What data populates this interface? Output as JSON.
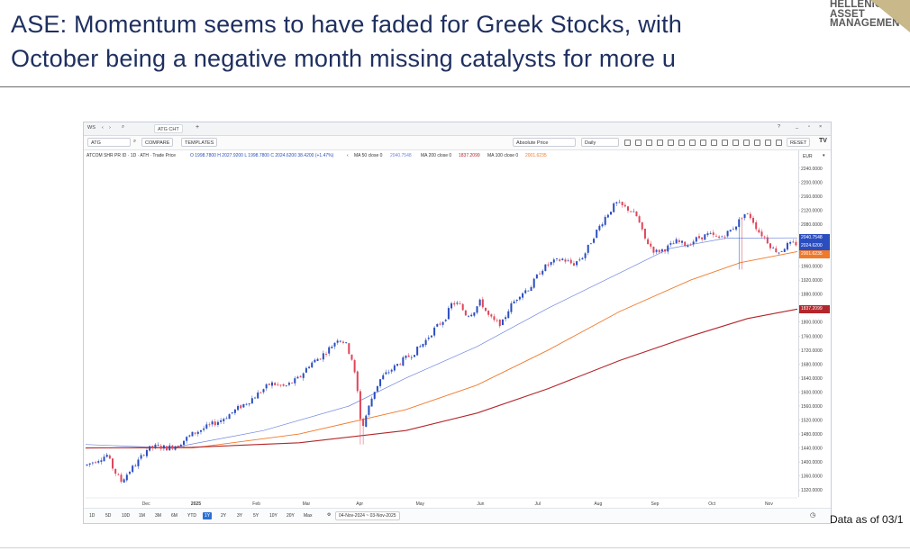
{
  "slide": {
    "title_line1": "ASE: Momentum seems to have faded for Greek Stocks, with",
    "title_line2": "October being a negative month missing catalysts for more u",
    "logo": [
      "HELLENIC",
      "ASSET",
      "MANAGEMENT"
    ],
    "footer_note": "Data as of 03/1"
  },
  "chart_window": {
    "tab_label": "ATG CHT",
    "workspace": "WS",
    "symbol_input": "ATG",
    "compare_label": "COMPARE",
    "templates_label": "TEMPLATES",
    "price_mode": "Absolute Price",
    "interval": "Daily",
    "reset_label": "RESET",
    "info": {
      "instrument": "ATCOM SHR PR ID · 1D · ATH · Trade Price",
      "ohlc": "O 1998.7800  H 2027.9200  L 1998.7800  C 2024.6200  38.4200 (+1.47%)",
      "ma50": "MA 50 close 0",
      "ma50_val": "2040.7548",
      "ma200": "MA 200 close 0",
      "ma200_val": "1837.2099",
      "ma100": "MA 100 close 0",
      "ma100_val": "2001.6235"
    },
    "currency": "EUR",
    "range_buttons": [
      "1D",
      "5D",
      "10D",
      "1M",
      "3M",
      "6M",
      "YTD",
      "1Y",
      "2Y",
      "3Y",
      "5Y",
      "10Y",
      "20Y",
      "Max"
    ],
    "range_selected": "1Y",
    "date_range": "04-Nov-2024 ~ 03-Nov-2025",
    "colors": {
      "up": "#2a4dbf",
      "down": "#e0455a",
      "ma50": "#6f86e0",
      "ma100": "#ef7a2c",
      "ma200": "#b3262b"
    }
  },
  "chart_data": {
    "type": "candlestick",
    "title": "",
    "xlabel": "",
    "ylabel": "",
    "x_tick_labels": [
      "Dec",
      "2025",
      "Feb",
      "Mar",
      "Apr",
      "May",
      "Jun",
      "Jul",
      "Aug",
      "Sep",
      "Oct",
      "Nov"
    ],
    "y_ticks": [
      1320,
      1360,
      1400,
      1440,
      1480,
      1520,
      1560,
      1600,
      1640,
      1680,
      1720,
      1760,
      1800,
      1840,
      1880,
      1920,
      1960,
      2000,
      2040,
      2080,
      2120,
      2160,
      2200,
      2240
    ],
    "y_tick_labels": [
      "1320.0000",
      "1360.0000",
      "1400.0000",
      "1440.0000",
      "1480.0000",
      "1520.0000",
      "1560.0000",
      "1600.0000",
      "1640.0000",
      "1680.0000",
      "1720.0000",
      "1760.0000",
      "1800.0000",
      "1840.0000",
      "1880.0000",
      "1920.0000",
      "1960.0000",
      "2000.0000",
      "2040.0000",
      "2080.0000",
      "2120.0000",
      "2160.0000",
      "2200.0000",
      "2240.0000"
    ],
    "ylim": [
      1300,
      2260
    ],
    "price_tags": [
      {
        "value": 2040.7548,
        "label": "2040.7548",
        "color": "#2a4dbf"
      },
      {
        "value": 2024.62,
        "label": "2024.6200",
        "color": "#2a4dbf"
      },
      {
        "value": 2001.6235,
        "label": "2001.6235",
        "color": "#ef7a2c"
      },
      {
        "value": 1837.2099,
        "label": "1837.2099",
        "color": "#b3262b"
      }
    ],
    "close_path": [
      [
        0.0,
        1390
      ],
      [
        0.015,
        1405
      ],
      [
        0.03,
        1420
      ],
      [
        0.04,
        1375
      ],
      [
        0.05,
        1345
      ],
      [
        0.06,
        1370
      ],
      [
        0.075,
        1405
      ],
      [
        0.085,
        1435
      ],
      [
        0.1,
        1445
      ],
      [
        0.115,
        1440
      ],
      [
        0.13,
        1450
      ],
      [
        0.15,
        1480
      ],
      [
        0.17,
        1500
      ],
      [
        0.19,
        1520
      ],
      [
        0.205,
        1540
      ],
      [
        0.215,
        1555
      ],
      [
        0.23,
        1575
      ],
      [
        0.245,
        1600
      ],
      [
        0.26,
        1625
      ],
      [
        0.28,
        1615
      ],
      [
        0.3,
        1640
      ],
      [
        0.315,
        1680
      ],
      [
        0.33,
        1700
      ],
      [
        0.345,
        1730
      ],
      [
        0.355,
        1755
      ],
      [
        0.365,
        1740
      ],
      [
        0.375,
        1690
      ],
      [
        0.382,
        1600
      ],
      [
        0.388,
        1490
      ],
      [
        0.395,
        1540
      ],
      [
        0.405,
        1600
      ],
      [
        0.415,
        1640
      ],
      [
        0.43,
        1665
      ],
      [
        0.445,
        1690
      ],
      [
        0.46,
        1710
      ],
      [
        0.475,
        1740
      ],
      [
        0.49,
        1780
      ],
      [
        0.505,
        1810
      ],
      [
        0.515,
        1855
      ],
      [
        0.525,
        1850
      ],
      [
        0.535,
        1820
      ],
      [
        0.545,
        1830
      ],
      [
        0.555,
        1860
      ],
      [
        0.565,
        1820
      ],
      [
        0.575,
        1800
      ],
      [
        0.585,
        1795
      ],
      [
        0.595,
        1840
      ],
      [
        0.61,
        1880
      ],
      [
        0.625,
        1900
      ],
      [
        0.64,
        1950
      ],
      [
        0.655,
        1970
      ],
      [
        0.67,
        1980
      ],
      [
        0.685,
        1965
      ],
      [
        0.7,
        1990
      ],
      [
        0.715,
        2050
      ],
      [
        0.73,
        2100
      ],
      [
        0.745,
        2140
      ],
      [
        0.755,
        2130
      ],
      [
        0.765,
        2120
      ],
      [
        0.775,
        2100
      ],
      [
        0.785,
        2040
      ],
      [
        0.8,
        2000
      ],
      [
        0.815,
        2010
      ],
      [
        0.83,
        2030
      ],
      [
        0.845,
        2020
      ],
      [
        0.86,
        2040
      ],
      [
        0.875,
        2050
      ],
      [
        0.89,
        2040
      ],
      [
        0.905,
        2060
      ],
      [
        0.915,
        2080
      ],
      [
        0.925,
        2110
      ],
      [
        0.935,
        2100
      ],
      [
        0.945,
        2060
      ],
      [
        0.955,
        2040
      ],
      [
        0.965,
        2010
      ],
      [
        0.975,
        2000
      ],
      [
        0.985,
        2020
      ],
      [
        1.0,
        2024.62
      ]
    ],
    "series": [
      {
        "name": "MA 50",
        "points": [
          [
            0,
            1450
          ],
          [
            0.12,
            1440
          ],
          [
            0.25,
            1490
          ],
          [
            0.37,
            1560
          ],
          [
            0.45,
            1640
          ],
          [
            0.55,
            1730
          ],
          [
            0.65,
            1840
          ],
          [
            0.75,
            1940
          ],
          [
            0.82,
            2010
          ],
          [
            0.9,
            2040
          ],
          [
            1.0,
            2040.75
          ]
        ]
      },
      {
        "name": "MA 100",
        "points": [
          [
            0,
            1440
          ],
          [
            0.15,
            1440
          ],
          [
            0.3,
            1480
          ],
          [
            0.45,
            1550
          ],
          [
            0.55,
            1620
          ],
          [
            0.65,
            1720
          ],
          [
            0.75,
            1830
          ],
          [
            0.85,
            1920
          ],
          [
            0.92,
            1970
          ],
          [
            1.0,
            2001.62
          ]
        ]
      },
      {
        "name": "MA 200",
        "points": [
          [
            0,
            1440
          ],
          [
            0.15,
            1442
          ],
          [
            0.3,
            1455
          ],
          [
            0.45,
            1490
          ],
          [
            0.55,
            1540
          ],
          [
            0.65,
            1610
          ],
          [
            0.75,
            1690
          ],
          [
            0.85,
            1760
          ],
          [
            0.93,
            1810
          ],
          [
            1.0,
            1837.21
          ]
        ]
      }
    ]
  }
}
